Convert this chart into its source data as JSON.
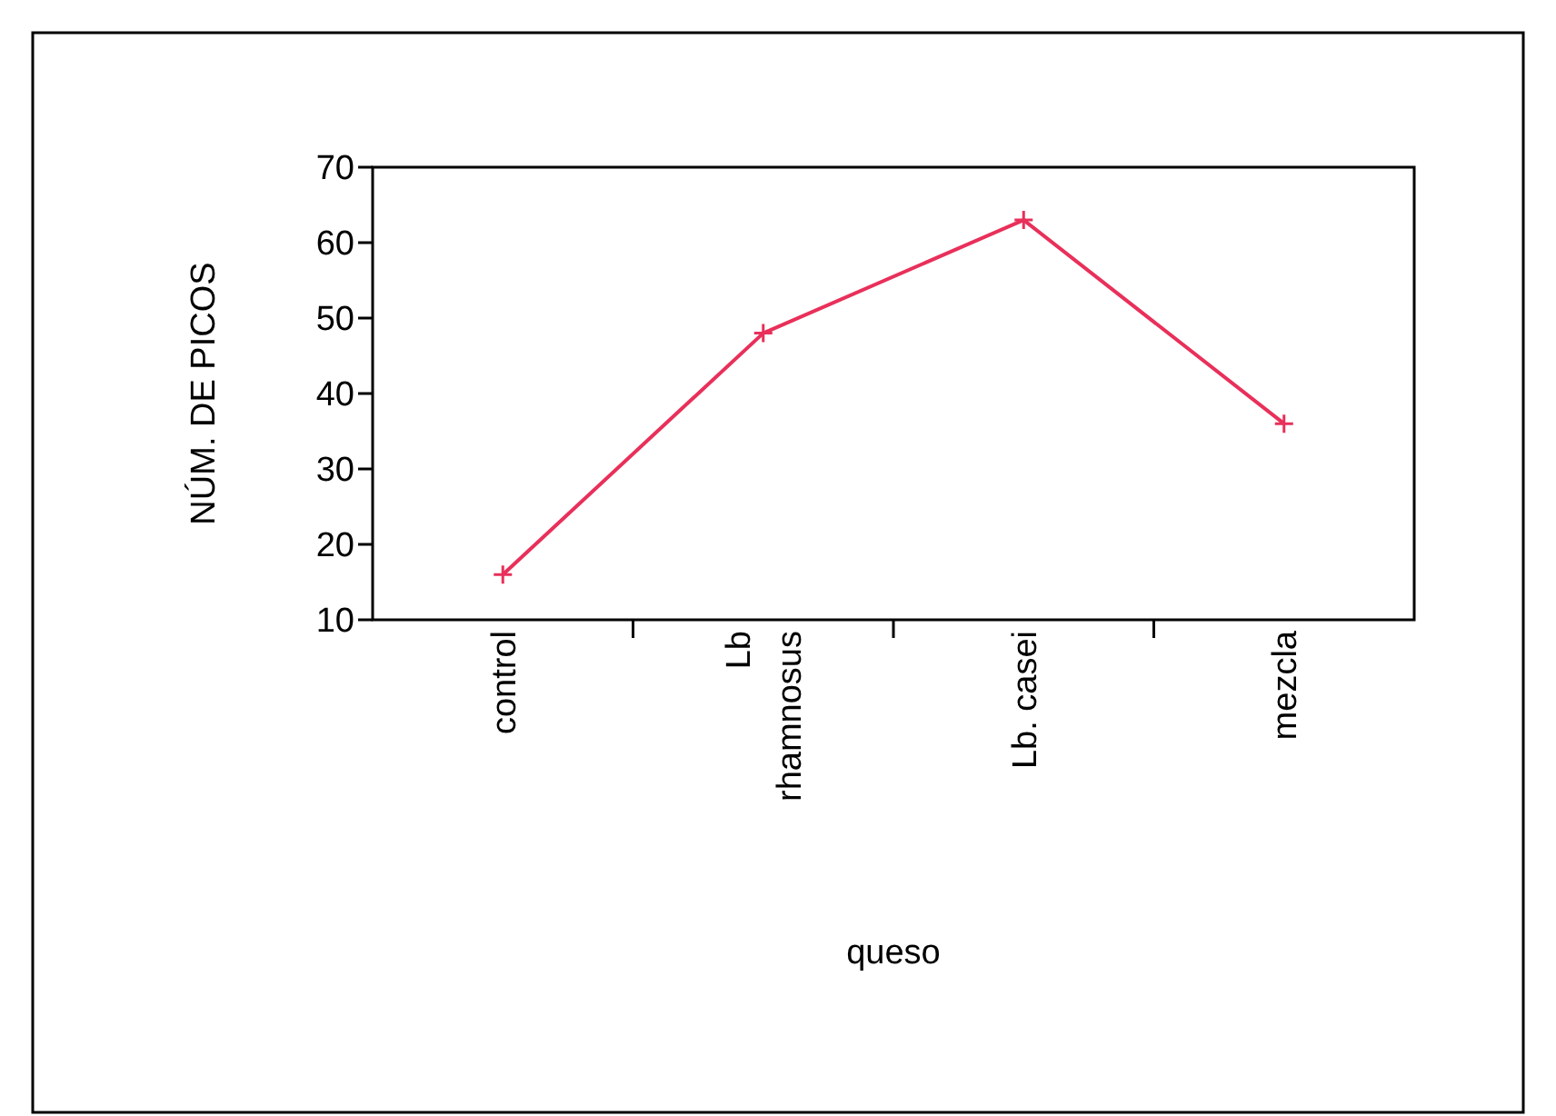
{
  "chart_data": {
    "type": "line",
    "xlabel": "queso",
    "ylabel": "NÚM. DE PICOS",
    "categories": [
      "control",
      "Lb rhamnosus",
      "Lb. casei",
      "mezcla"
    ],
    "series": [
      {
        "color": "#e8305a",
        "values": [
          16,
          48,
          63,
          36
        ]
      }
    ],
    "ylim": [
      10,
      70
    ],
    "yticks": [
      10,
      20,
      30,
      40,
      50,
      60,
      70
    ],
    "grid": false,
    "marker": "cross",
    "line_style": "solid"
  }
}
